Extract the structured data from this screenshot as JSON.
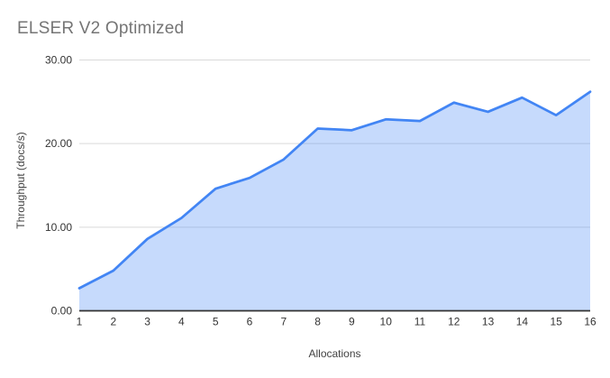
{
  "chart_data": {
    "type": "area",
    "title": "ELSER V2 Optimized",
    "xlabel": "Allocations",
    "ylabel": "Throughput (docs/s)",
    "x": [
      1,
      2,
      3,
      4,
      5,
      6,
      7,
      8,
      9,
      10,
      11,
      12,
      13,
      14,
      15,
      16
    ],
    "values": [
      2.7,
      4.8,
      8.6,
      11.1,
      14.6,
      15.9,
      18.1,
      21.8,
      21.6,
      22.9,
      22.7,
      24.9,
      23.8,
      25.5,
      23.4,
      26.2
    ],
    "ylim": [
      0,
      30
    ],
    "yticks": [
      0,
      10,
      20,
      30
    ],
    "ytick_labels": [
      "0.00",
      "10.00",
      "20.00",
      "30.00"
    ],
    "grid": "horizontal-only",
    "legend": "none",
    "colors": {
      "line": "#4285f4",
      "fill_rgba": "rgba(66,133,244,0.30)",
      "gridline": "#d9d9d9",
      "axis_line": "#333333",
      "title_text": "#757575",
      "tick_text": "#333333",
      "axis_title_text": "#424242",
      "background": "#ffffff"
    }
  }
}
